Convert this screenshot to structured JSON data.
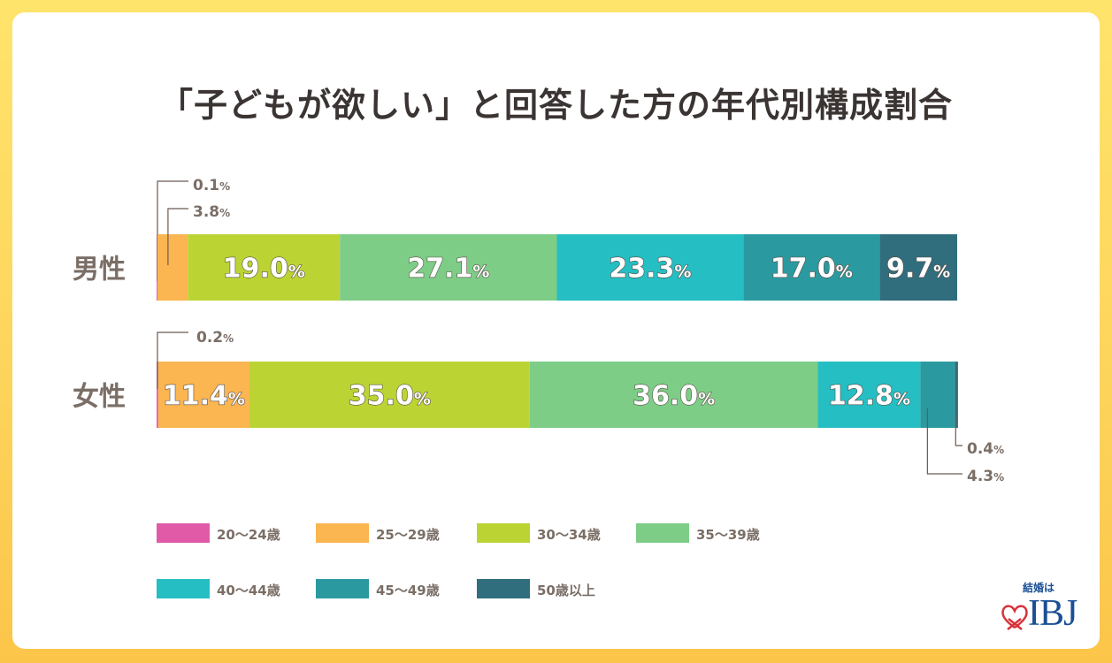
{
  "chart_data": {
    "type": "bar",
    "orientation": "horizontal",
    "stacked": true,
    "title": "「子どもが欲しい」と回答した方の年代別構成割合",
    "unit": "%",
    "categories": [
      "男性",
      "女性"
    ],
    "series": [
      {
        "name": "20〜24歳",
        "color": "#e05aa8",
        "values": [
          0.1,
          0.2
        ]
      },
      {
        "name": "25〜29歳",
        "color": "#fbb551",
        "values": [
          3.8,
          11.4
        ]
      },
      {
        "name": "30〜34歳",
        "color": "#bcd433",
        "values": [
          19.0,
          35.0
        ]
      },
      {
        "name": "35〜39歳",
        "color": "#7dcd87",
        "values": [
          27.1,
          36.0
        ]
      },
      {
        "name": "40〜44歳",
        "color": "#25bec3",
        "values": [
          23.3,
          12.8
        ]
      },
      {
        "name": "45〜49歳",
        "color": "#2b9aa0",
        "values": [
          17.0,
          4.3
        ]
      },
      {
        "name": "50歳以上",
        "color": "#306e7e",
        "values": [
          9.7,
          0.4
        ]
      }
    ],
    "xlim": [
      0,
      100
    ],
    "grid": false,
    "legend": "bottom"
  },
  "logo": {
    "tagline": "結婚は",
    "brand": "IBJ"
  }
}
